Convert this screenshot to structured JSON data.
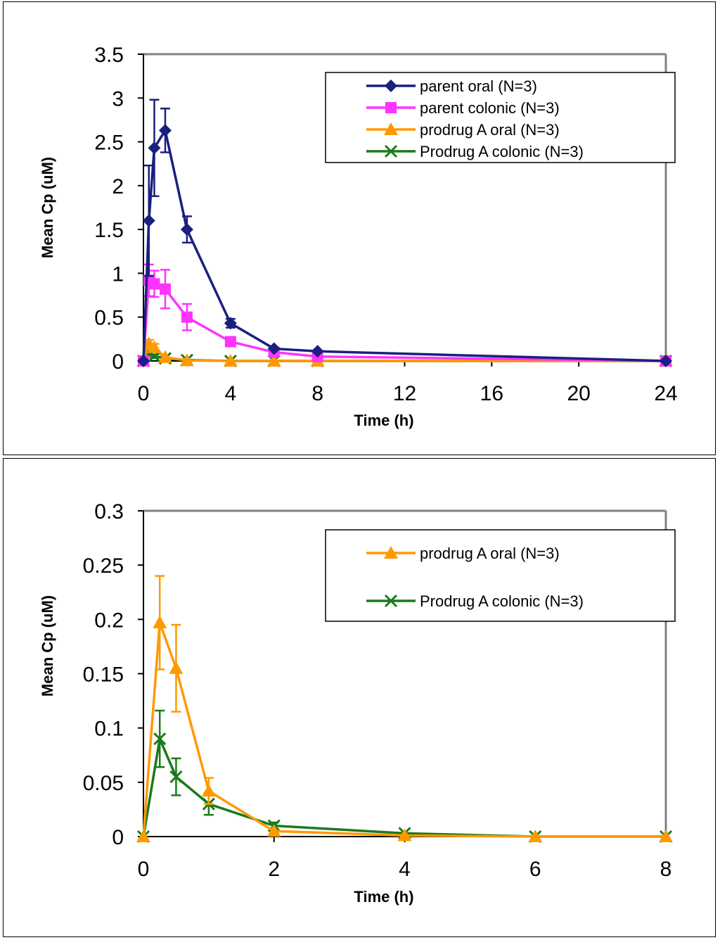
{
  "chart_data": [
    {
      "type": "line",
      "xlabel": "Time (h)",
      "ylabel": "Mean Cp (uM)",
      "xlim": [
        0,
        24
      ],
      "ylim": [
        0,
        3.5
      ],
      "x_ticks": [
        0,
        4,
        8,
        12,
        16,
        20,
        24
      ],
      "x_tick_labels": [
        "0",
        "4",
        "8",
        "12",
        "16",
        "20",
        "24"
      ],
      "y_ticks": [
        0,
        0.5,
        1,
        1.5,
        2,
        2.5,
        3,
        3.5
      ],
      "y_tick_labels": [
        "0",
        "0.5",
        "1",
        "1.5",
        "2",
        "2.5",
        "3",
        "3.5"
      ],
      "legend_position": "top-right",
      "series": [
        {
          "name": "parent oral (N=3)",
          "color": "#1a1f80",
          "marker": "diamond",
          "x": [
            0,
            0.25,
            0.5,
            1,
            2,
            4,
            6,
            8,
            24
          ],
          "y": [
            0,
            1.6,
            2.43,
            2.63,
            1.5,
            0.43,
            0.14,
            0.11,
            0.0
          ],
          "err": [
            0,
            0.63,
            0.55,
            0.25,
            0.15,
            0.05,
            0,
            0,
            0
          ]
        },
        {
          "name": "parent colonic (N=3)",
          "color": "#ff33ff",
          "marker": "square",
          "x": [
            0,
            0.25,
            0.5,
            1,
            2,
            4,
            6,
            8,
            24
          ],
          "y": [
            0,
            0.92,
            0.88,
            0.82,
            0.5,
            0.22,
            0.1,
            0.05,
            0.0
          ],
          "err": [
            0,
            0.18,
            0.15,
            0.22,
            0.15,
            0,
            0,
            0,
            0
          ]
        },
        {
          "name": "prodrug A oral (N=3)",
          "color": "#ff9900",
          "marker": "triangle",
          "x": [
            0,
            0.25,
            0.5,
            1,
            2,
            4,
            6,
            8,
            24
          ],
          "y": [
            0,
            0.2,
            0.155,
            0.042,
            0.005,
            0.0,
            0.0,
            0.0,
            0.0
          ],
          "err": [
            0,
            0.04,
            0.04,
            0,
            0,
            0,
            0,
            0,
            0
          ]
        },
        {
          "name": "Prodrug A colonic (N=3)",
          "color": "#1a7a1a",
          "marker": "x",
          "x": [
            0,
            0.25,
            0.5,
            1,
            2,
            4,
            6,
            8,
            24
          ],
          "y": [
            0,
            0.09,
            0.055,
            0.03,
            0.01,
            0.0,
            0.0,
            0.0,
            0.0
          ],
          "err": [
            0,
            0.03,
            0.02,
            0,
            0,
            0,
            0,
            0,
            0
          ]
        }
      ]
    },
    {
      "type": "line",
      "xlabel": "Time (h)",
      "ylabel": "Mean Cp (uM)",
      "xlim": [
        0,
        8
      ],
      "ylim": [
        0,
        0.3
      ],
      "x_ticks": [
        0,
        2,
        4,
        6,
        8
      ],
      "x_tick_labels": [
        "0",
        "2",
        "4",
        "6",
        "8"
      ],
      "y_ticks": [
        0,
        0.05,
        0.1,
        0.15,
        0.2,
        0.25,
        0.3
      ],
      "y_tick_labels": [
        "0",
        "0.05",
        "0.1",
        "0.15",
        "0.2",
        "0.25",
        "0.3"
      ],
      "legend_position": "top-right",
      "series": [
        {
          "name": "prodrug A oral (N=3)",
          "color": "#ff9900",
          "marker": "triangle",
          "x": [
            0,
            0.25,
            0.5,
            1,
            2,
            4,
            6,
            8
          ],
          "y": [
            0,
            0.197,
            0.155,
            0.042,
            0.005,
            0.001,
            0.0,
            0.0
          ],
          "err": [
            0,
            0.043,
            0.04,
            0.012,
            0,
            0,
            0,
            0
          ]
        },
        {
          "name": "Prodrug A colonic (N=3)",
          "color": "#1a7a1a",
          "marker": "x",
          "x": [
            0,
            0.25,
            0.5,
            1,
            2,
            4,
            6,
            8
          ],
          "y": [
            0,
            0.09,
            0.055,
            0.03,
            0.01,
            0.003,
            0.0,
            0.0
          ],
          "err": [
            0,
            0.026,
            0.017,
            0.01,
            0.003,
            0,
            0,
            0
          ]
        }
      ]
    }
  ]
}
